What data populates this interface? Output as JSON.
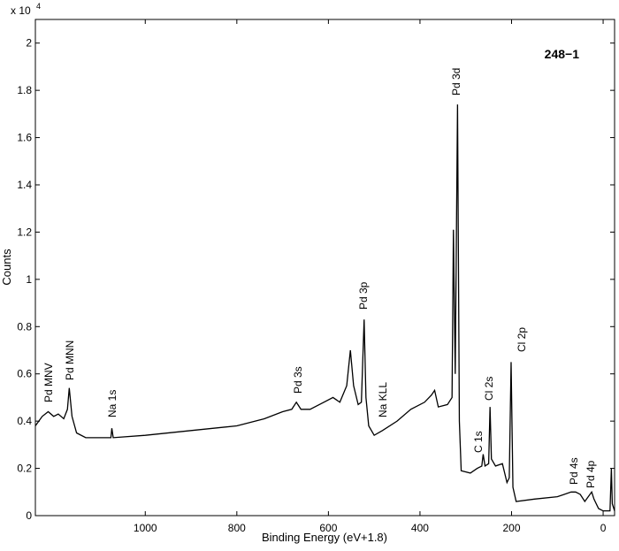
{
  "chart_data": {
    "type": "line",
    "title": "248−1",
    "xlabel": "Binding Energy (eV+1.8)",
    "ylabel": "Counts",
    "y_multiplier": "x 10",
    "y_multiplier_exponent": "4",
    "color": "#000000",
    "x": [
      1240,
      1225,
      1212,
      1200,
      1190,
      1178,
      1170,
      1166,
      1160,
      1150,
      1130,
      1100,
      1075,
      1073,
      1070,
      1000,
      900,
      800,
      740,
      700,
      680,
      670,
      660,
      640,
      610,
      590,
      575,
      560,
      552,
      545,
      535,
      528,
      522,
      518,
      512,
      500,
      482,
      450,
      420,
      390,
      375,
      368,
      360,
      340,
      330,
      327,
      323,
      318,
      314,
      310,
      290,
      275,
      265,
      262,
      258,
      250,
      247,
      244,
      235,
      220,
      210,
      205,
      201,
      197,
      190,
      150,
      100,
      70,
      60,
      50,
      40,
      25,
      20,
      10,
      0,
      -15,
      -18,
      -20,
      -25
    ],
    "values": [
      0.38,
      0.42,
      0.44,
      0.42,
      0.43,
      0.41,
      0.45,
      0.54,
      0.42,
      0.35,
      0.33,
      0.33,
      0.33,
      0.37,
      0.33,
      0.34,
      0.36,
      0.38,
      0.41,
      0.44,
      0.45,
      0.48,
      0.45,
      0.45,
      0.48,
      0.5,
      0.48,
      0.55,
      0.7,
      0.55,
      0.47,
      0.48,
      0.83,
      0.5,
      0.38,
      0.34,
      0.36,
      0.4,
      0.45,
      0.48,
      0.51,
      0.53,
      0.46,
      0.47,
      0.5,
      1.21,
      0.6,
      1.74,
      0.4,
      0.19,
      0.18,
      0.2,
      0.21,
      0.26,
      0.21,
      0.22,
      0.46,
      0.24,
      0.21,
      0.22,
      0.14,
      0.16,
      0.65,
      0.12,
      0.06,
      0.07,
      0.08,
      0.1,
      0.1,
      0.09,
      0.06,
      0.1,
      0.07,
      0.03,
      0.02,
      0.02,
      0.2,
      0.05,
      0.02
    ],
    "xlim": [
      1240,
      -25
    ],
    "xticks": [
      1000,
      800,
      600,
      400,
      200,
      0
    ],
    "ylim": [
      0,
      2.1
    ],
    "yticks": [
      0,
      0.2,
      0.4,
      0.6,
      0.8,
      1,
      1.2,
      1.4,
      1.6,
      1.8,
      2
    ],
    "annotations": [
      "Pd MNV",
      "Pd MNN",
      "Na 1s",
      "Pd 3s",
      "Pd 3p",
      "Na KLL",
      "Pd 3d",
      "C 1s",
      "Cl 2s",
      "Cl 2p",
      "Pd 4s",
      "Pd 4p"
    ]
  }
}
